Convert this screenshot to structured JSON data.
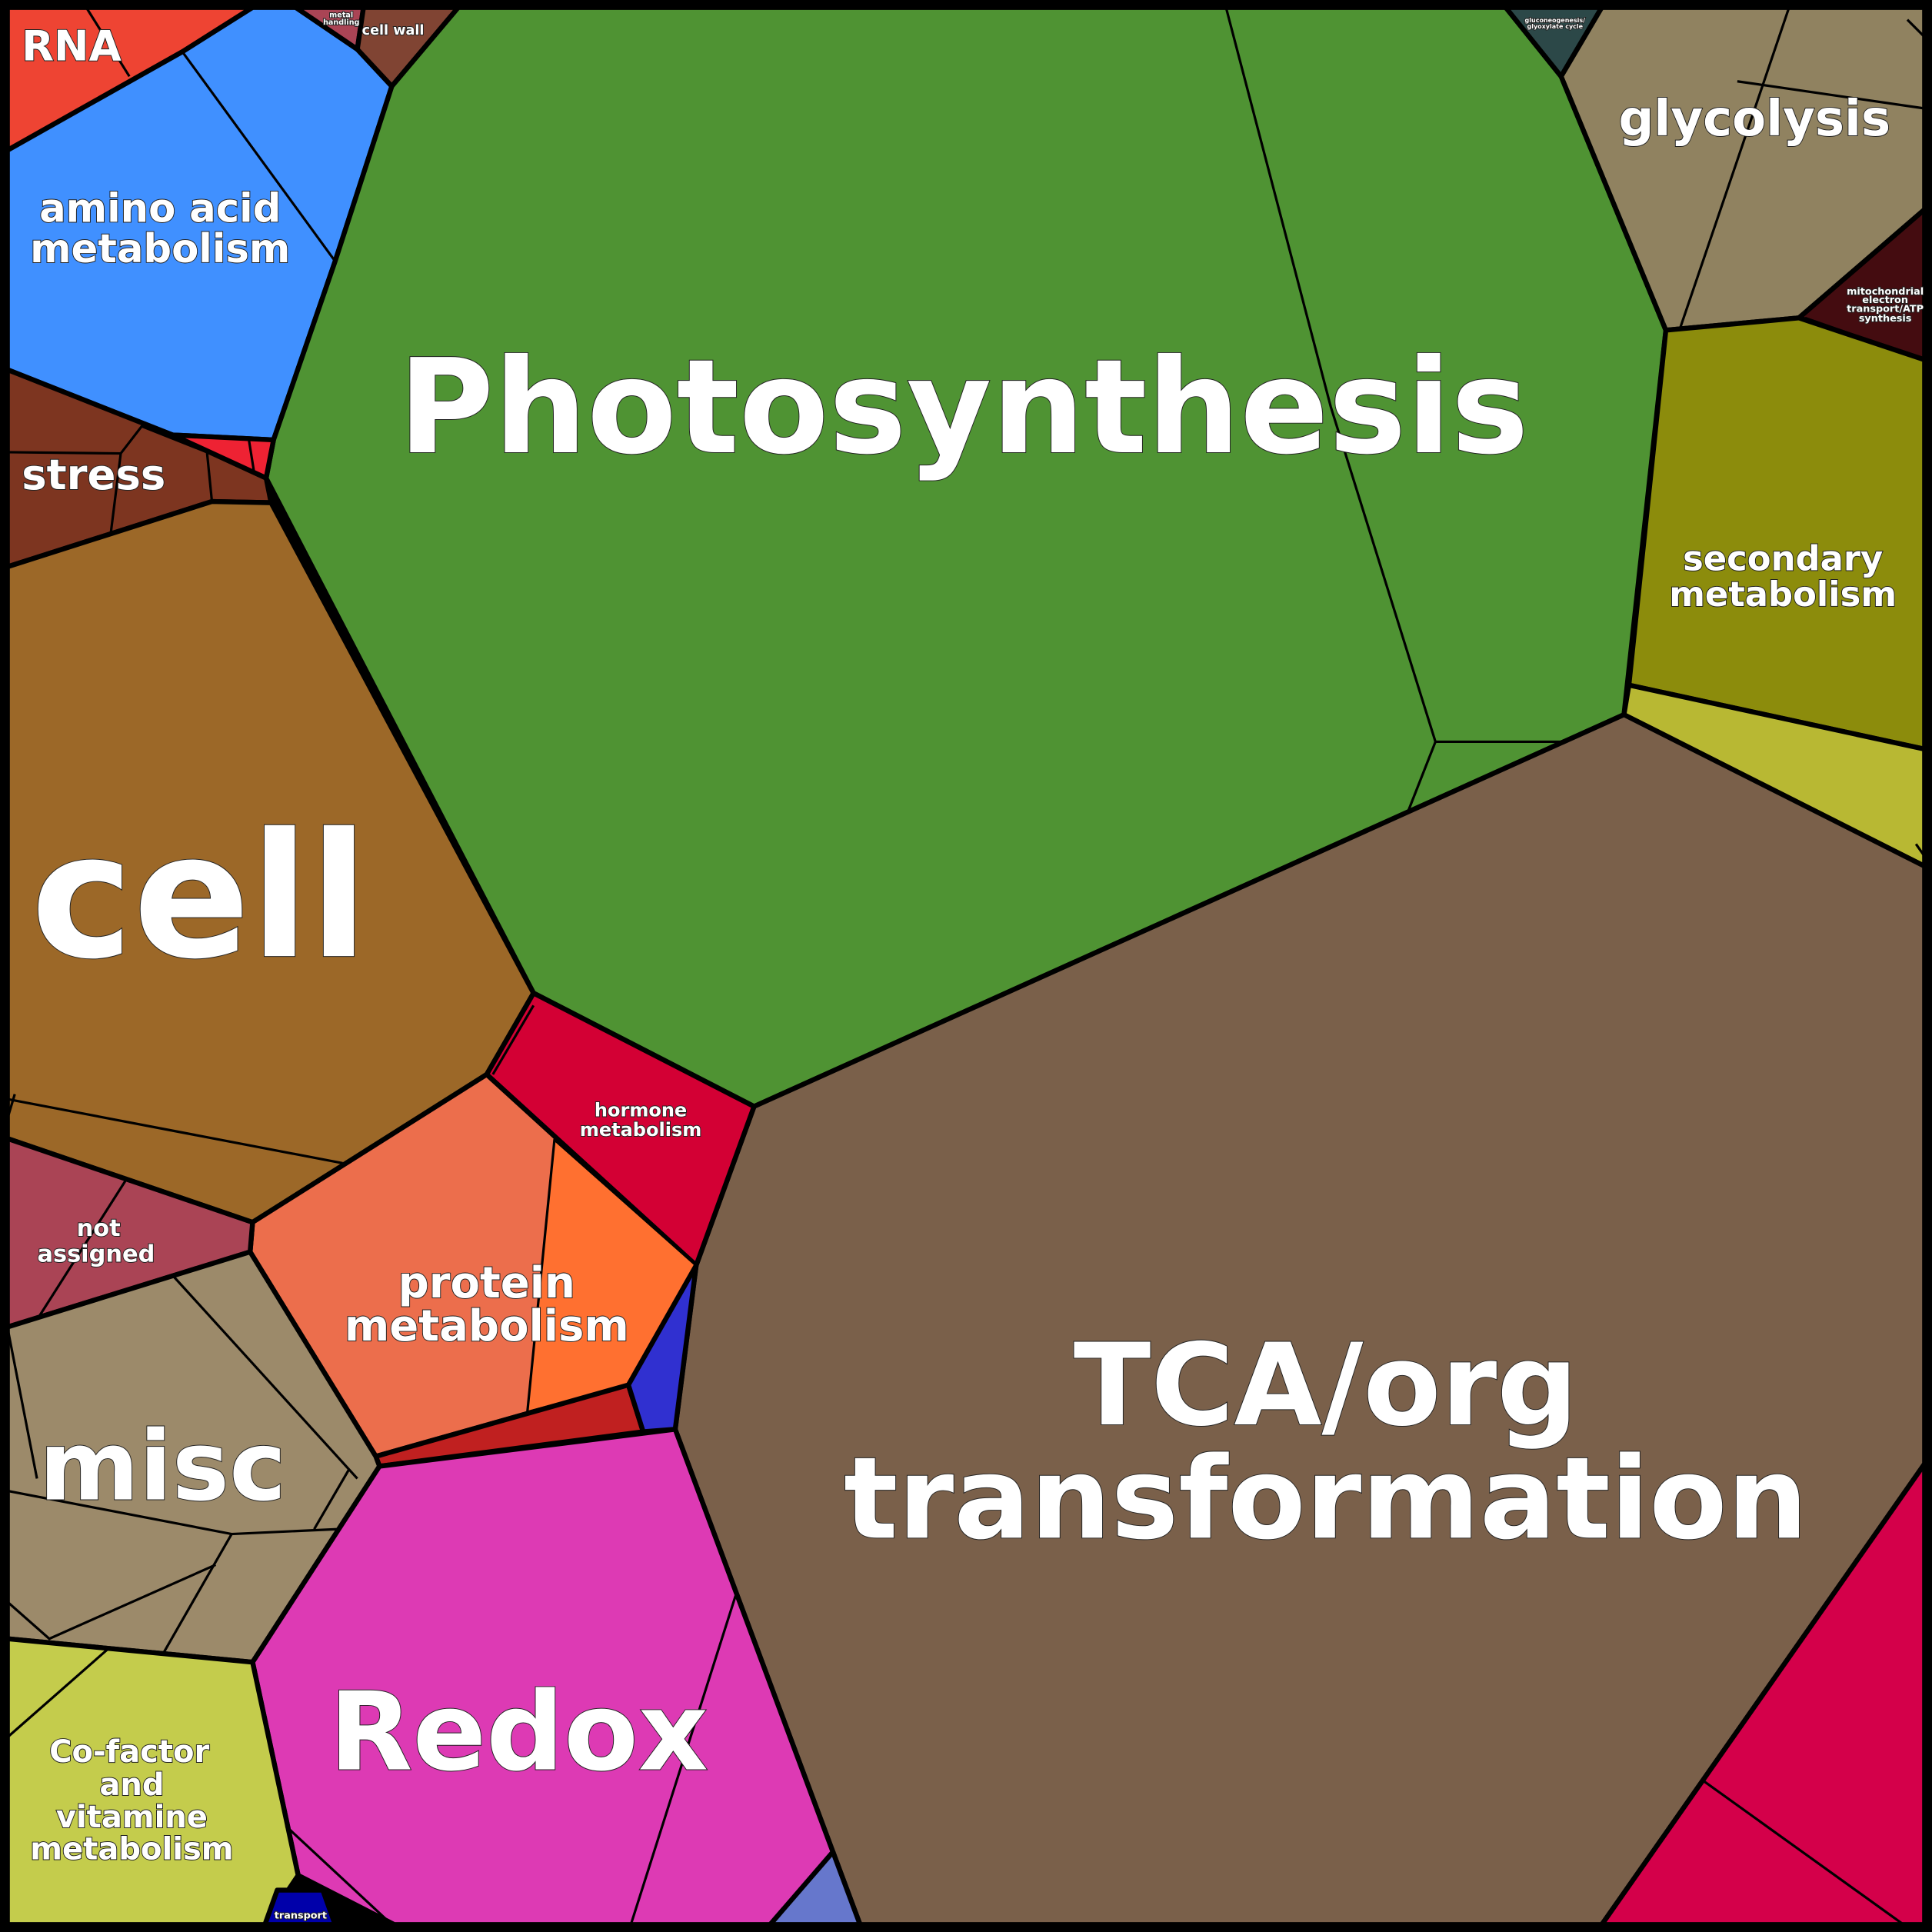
{
  "cells": {
    "rna": {
      "label": "RNA",
      "color": "#EE4433"
    },
    "amino": {
      "label1": "amino acid",
      "label2": "metabolism",
      "color": "#4090FF"
    },
    "metal": {
      "label1": "metal",
      "label2": "handling",
      "color": "#AA4455"
    },
    "cellwall": {
      "label": "cell wall",
      "color": "#804433"
    },
    "photo": {
      "label": "Photosynthesis",
      "color": "#4F9333"
    },
    "gluco": {
      "label1": "gluconeogenesis/",
      "label2": "glyoxylate cycle",
      "color": "#2C4848"
    },
    "glyco": {
      "label": "glycolysis",
      "color": "#908260"
    },
    "mito": {
      "label1": "mitochondrial",
      "label2": "electron",
      "label3": "transport/ATP",
      "label4": "synthesis",
      "color": "#440C10"
    },
    "secondary": {
      "label1": "secondary",
      "label2": "metabolism",
      "color": "#8C8C0C",
      "color2": "#B8B833"
    },
    "tca": {
      "label1": "TCA/org",
      "label2": "transformation",
      "color": "#7A604A"
    },
    "unknownRight": {
      "color": "#D4004A"
    },
    "stress": {
      "label": "stress",
      "color": "#7D3520"
    },
    "smallRed": {
      "color": "#EE2233"
    },
    "cell": {
      "label": "cell",
      "color": "#9C6828"
    },
    "hormone": {
      "label1": "hormone",
      "label2": "metabolism",
      "color": "#D30034"
    },
    "protein": {
      "label1": "protein",
      "label2": "metabolism",
      "color": "#EC6E4C",
      "color2": "#FF7030"
    },
    "darkRed": {
      "color": "#C02020"
    },
    "blue": {
      "color": "#3030D0"
    },
    "notassigned": {
      "label1": "not",
      "label2": "assigned",
      "color": "#AA4455"
    },
    "misc": {
      "label": "misc",
      "color": "#9C8A6A"
    },
    "redox": {
      "label": "Redox",
      "color": "#DD3AB4",
      "color2": "#6677CC"
    },
    "cofactor": {
      "label1": "Co-factor",
      "label2": "and",
      "label3": "vitamine",
      "label4": "metabolism",
      "color": "#C4CC4C"
    },
    "transport": {
      "label": "transport",
      "color": "#0000AA"
    }
  }
}
